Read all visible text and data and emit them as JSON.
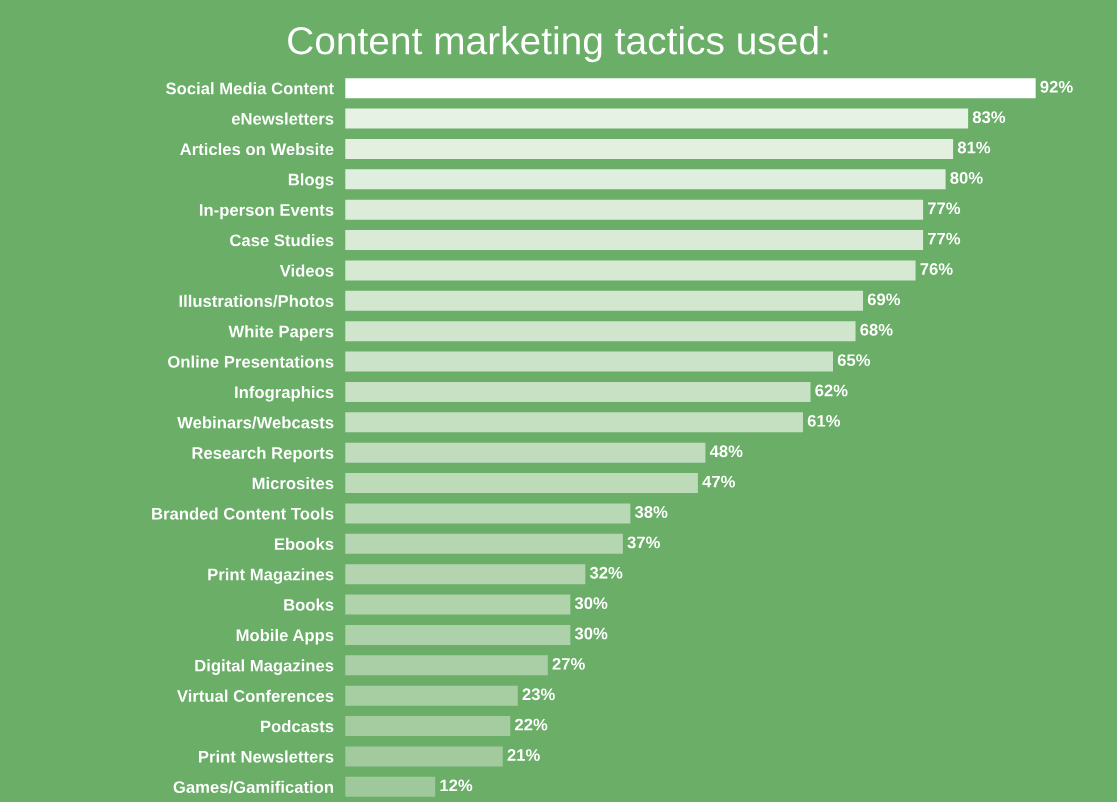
{
  "chart_data": {
    "type": "bar",
    "orientation": "horizontal",
    "title": "Content marketing tactics used:",
    "categories": [
      "Social Media Content",
      "eNewsletters",
      "Articles on Website",
      "Blogs",
      "In-person Events",
      "Case Studies",
      "Videos",
      "Illustrations/Photos",
      "White Papers",
      "Online Presentations",
      "Infographics",
      "Webinars/Webcasts",
      "Research Reports",
      "Microsites",
      "Branded Content Tools",
      "Ebooks",
      "Print Magazines",
      "Books",
      "Mobile Apps",
      "Digital Magazines",
      "Virtual Conferences",
      "Podcasts",
      "Print Newsletters",
      "Games/Gamification"
    ],
    "values": [
      92,
      83,
      81,
      80,
      77,
      77,
      76,
      69,
      68,
      65,
      62,
      61,
      48,
      47,
      38,
      37,
      32,
      30,
      30,
      27,
      23,
      22,
      21,
      12
    ],
    "value_labels": [
      "92%",
      "83%",
      "81%",
      "80%",
      "77%",
      "77%",
      "76%",
      "69%",
      "68%",
      "65%",
      "62%",
      "61%",
      "48%",
      "47%",
      "38%",
      "37%",
      "32%",
      "30%",
      "30%",
      "27%",
      "23%",
      "22%",
      "21%",
      "12%"
    ],
    "colors": [
      "#ffffff",
      "#e6f2e3",
      "#e3f0e0",
      "#e0efdd",
      "#dcecd9",
      "#d9ebd6",
      "#d6e9d3",
      "#d2e7cf",
      "#cfe5cc",
      "#cbe3c8",
      "#c8e1c4",
      "#c5dfc1",
      "#c0dcbc",
      "#bddab9",
      "#b9d8b5",
      "#b6d6b2",
      "#b3d4af",
      "#b0d3ac",
      "#add1a9",
      "#aacfa6",
      "#a7cda3",
      "#a5cca0",
      "#a2ca9d",
      "#a0c99b"
    ]
  }
}
